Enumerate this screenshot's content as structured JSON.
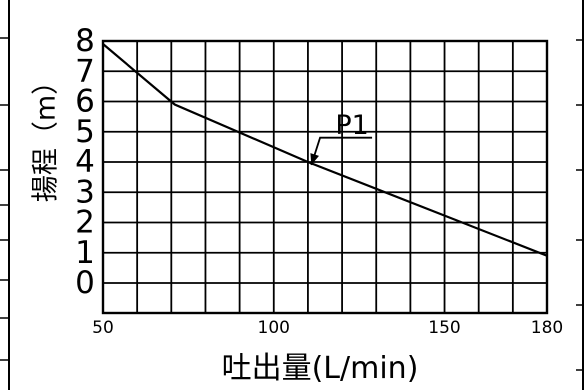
{
  "chart_data": {
    "type": "line",
    "title": "",
    "xlabel": "吐出量(L/min)",
    "ylabel": "揚程（m）",
    "xlim": [
      50,
      180
    ],
    "ylim": [
      0,
      8
    ],
    "x_tick_labels": [
      "50",
      "100",
      "150",
      "180"
    ],
    "y_tick_labels": [
      "0",
      "1",
      "2",
      "3",
      "4",
      "5",
      "6",
      "7",
      "8"
    ],
    "grid": true,
    "series": [
      {
        "name": "P1",
        "x": [
          50,
          71,
          110,
          180
        ],
        "y": [
          7.9,
          5.9,
          4.0,
          0.9
        ]
      }
    ],
    "annotations": [
      {
        "text": "P1",
        "x": 120,
        "y": 5.2,
        "points_to": {
          "x": 111,
          "y": 3.9
        }
      }
    ]
  }
}
